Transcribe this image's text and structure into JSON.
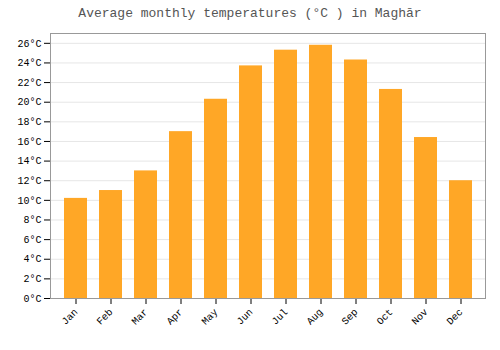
{
  "chart_data": {
    "type": "bar",
    "title": "Average monthly temperatures (°C ) in Maghār",
    "categories": [
      "Jan",
      "Feb",
      "Mar",
      "Apr",
      "May",
      "Jun",
      "Jul",
      "Aug",
      "Sep",
      "Oct",
      "Nov",
      "Dec"
    ],
    "values": [
      10.2,
      11.0,
      13.0,
      17.0,
      20.3,
      23.7,
      25.3,
      25.8,
      24.3,
      21.3,
      16.4,
      12.0
    ],
    "color": "#FFA726",
    "ylim": [
      0,
      27
    ],
    "yticks": [
      {
        "value": 0,
        "label": "0°C"
      },
      {
        "value": 2,
        "label": "2°C"
      },
      {
        "value": 4,
        "label": "4°C"
      },
      {
        "value": 6,
        "label": "6°C"
      },
      {
        "value": 8,
        "label": "8°C"
      },
      {
        "value": 10,
        "label": "10°C"
      },
      {
        "value": 12,
        "label": "12°C"
      },
      {
        "value": 14,
        "label": "14°C"
      },
      {
        "value": 16,
        "label": "16°C"
      },
      {
        "value": 18,
        "label": "18°C"
      },
      {
        "value": 20,
        "label": "20°C"
      },
      {
        "value": 22,
        "label": "22°C"
      },
      {
        "value": 24,
        "label": "24°C"
      },
      {
        "value": 26,
        "label": "26°C"
      }
    ],
    "grid": true
  }
}
